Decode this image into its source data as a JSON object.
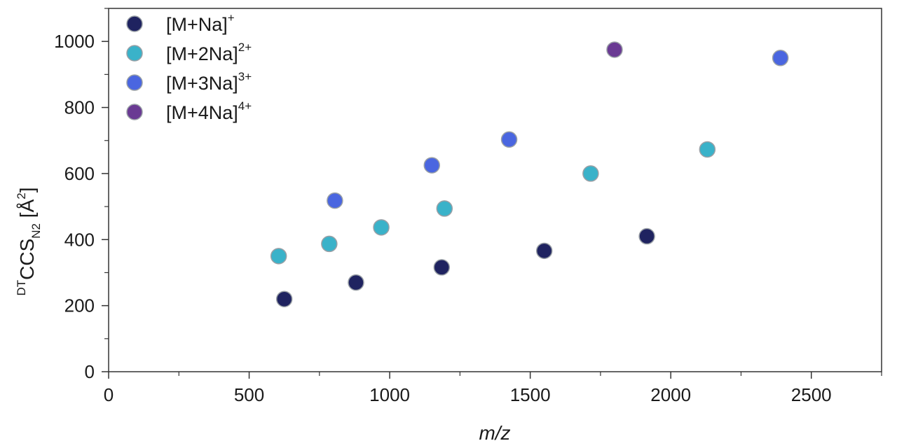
{
  "chart_data": {
    "type": "scatter",
    "xlabel": "m/z",
    "ylabel": {
      "pre": "DT",
      "main": "CCS",
      "sub": "N2",
      "unit_open": " [Å",
      "unit_sup": "2",
      "unit_close": "]"
    },
    "xlim": [
      0,
      2750
    ],
    "ylim": [
      0,
      1100
    ],
    "x_ticks": [
      0,
      500,
      1000,
      1500,
      2000,
      2500
    ],
    "y_ticks": [
      0,
      200,
      400,
      600,
      800,
      1000
    ],
    "x_minor_ticks": [
      250,
      750,
      1250,
      1750,
      2250,
      2750
    ],
    "y_minor_ticks": [
      100,
      300,
      500,
      700,
      900,
      1100
    ],
    "grid": false,
    "legend_position": "top-left",
    "series": [
      {
        "name": "[M+Na]",
        "charge": "+",
        "color": "#1f2360",
        "points": [
          [
            625,
            220
          ],
          [
            880,
            270
          ],
          [
            1185,
            316
          ],
          [
            1550,
            366
          ],
          [
            1915,
            410
          ]
        ]
      },
      {
        "name": "[M+2Na]",
        "charge": "2+",
        "color": "#3ab2c9",
        "points": [
          [
            605,
            350
          ],
          [
            785,
            387
          ],
          [
            970,
            437
          ],
          [
            1195,
            494
          ],
          [
            1715,
            600
          ],
          [
            2130,
            673
          ]
        ]
      },
      {
        "name": "[M+3Na]",
        "charge": "3+",
        "color": "#4a66e0",
        "points": [
          [
            805,
            518
          ],
          [
            1150,
            625
          ],
          [
            1425,
            703
          ],
          [
            2390,
            950
          ]
        ]
      },
      {
        "name": "[M+4Na]",
        "charge": "4+",
        "color": "#6a3a93",
        "points": [
          [
            1800,
            975
          ]
        ]
      }
    ]
  }
}
